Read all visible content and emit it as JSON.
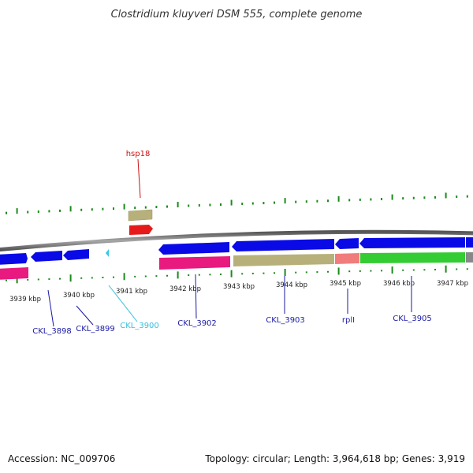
{
  "title": "Clostridium kluyveri DSM 555, complete genome",
  "footer": {
    "accession": "Accession: NC_009706",
    "topology": "Topology: circular; Length: 3,964,618 bp; Genes: 3,919"
  },
  "kbp_labels": [
    "3939 kbp",
    "3940 kbp",
    "3941 kbp",
    "3942 kbp",
    "3943 kbp",
    "3944 kbp",
    "3945 kbp",
    "3946 kbp",
    "3947 kbp"
  ],
  "gene_labels": {
    "hsp18": "hsp18",
    "ckl3898": "CKL_3898",
    "ckl3899": "CKL_3899",
    "ckl3900": "CKL_3900",
    "ckl3902": "CKL_3902",
    "ckl3903": "CKL_3903",
    "rpll": "rplI",
    "ckl3905": "CKL_3905"
  },
  "colors": {
    "cds": "#0a0ae6",
    "rna": "#e8197f",
    "tan": "#b8b07a",
    "red": "#e61a1a",
    "pink": "#f07c7c",
    "green": "#33cc33",
    "cyan": "#33c8e6",
    "tick": "#1a8a1a",
    "backbone": "#7a7a7a",
    "label_blue": "#1a1aa6",
    "label_red": "#cc1111",
    "label_cyan": "#33c0dd"
  }
}
